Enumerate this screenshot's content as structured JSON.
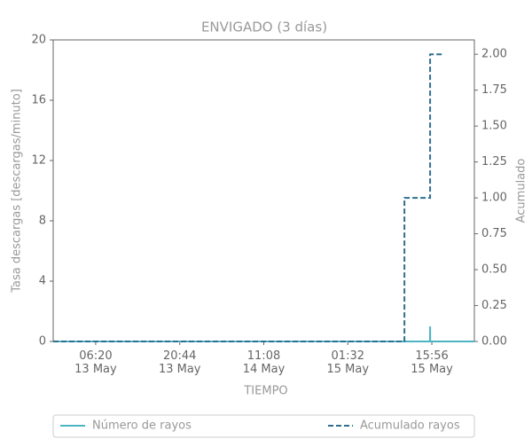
{
  "chart_data": {
    "type": "line",
    "title": "ENVIGADO (3 días)",
    "xlabel": "TIEMPO",
    "ylabel": "Tasa descargas [descargas/minuto]",
    "y2label": "Acumulado",
    "xlim": [
      "12 May 23:03",
      "15 May 23:13"
    ],
    "xticks": [
      {
        "value": "13 May 06:20",
        "label": "06:20\n13 May"
      },
      {
        "value": "13 May 20:44",
        "label": "20:44\n13 May"
      },
      {
        "value": "14 May 11:08",
        "label": "11:08\n14 May"
      },
      {
        "value": "15 May 01:32",
        "label": "01:32\n15 May"
      },
      {
        "value": "15 May 15:56",
        "label": "15:56\n15 May"
      }
    ],
    "ylim": [
      0,
      20
    ],
    "yticks": [
      0,
      4,
      8,
      12,
      16,
      20
    ],
    "y2lim": [
      0,
      2.1
    ],
    "y2ticks": [
      {
        "value": 0,
        "label": "0.00"
      },
      {
        "value": 0.25,
        "label": "0.25"
      },
      {
        "value": 0.5,
        "label": "0.50"
      },
      {
        "value": 0.75,
        "label": "0.75"
      },
      {
        "value": 1,
        "label": "1.00"
      },
      {
        "value": 1.25,
        "label": "1.25"
      },
      {
        "value": 1.5,
        "label": "1.50"
      },
      {
        "value": 1.75,
        "label": "1.75"
      },
      {
        "value": 2,
        "label": "2.00"
      }
    ],
    "legend": "bottom",
    "series": [
      {
        "name": "Número de rayos",
        "color": "#4bb5c1",
        "dash": false,
        "x": [
          "12 May 23:03",
          "15 May 15:37",
          "15 May 15:38",
          "15 May 15:39",
          "15 May 23:13"
        ],
        "values": [
          0,
          0,
          1,
          0,
          0
        ]
      },
      {
        "name": "Acumulado rayos",
        "color": "#2e6f8e",
        "dash": true,
        "axis": "y2",
        "x": [
          "12 May 23:03",
          "15 May 11:14",
          "15 May 11:14",
          "15 May 15:38",
          "15 May 15:38",
          "15 May 18:03"
        ],
        "values": [
          0,
          0,
          1,
          1,
          2,
          2
        ]
      }
    ]
  }
}
